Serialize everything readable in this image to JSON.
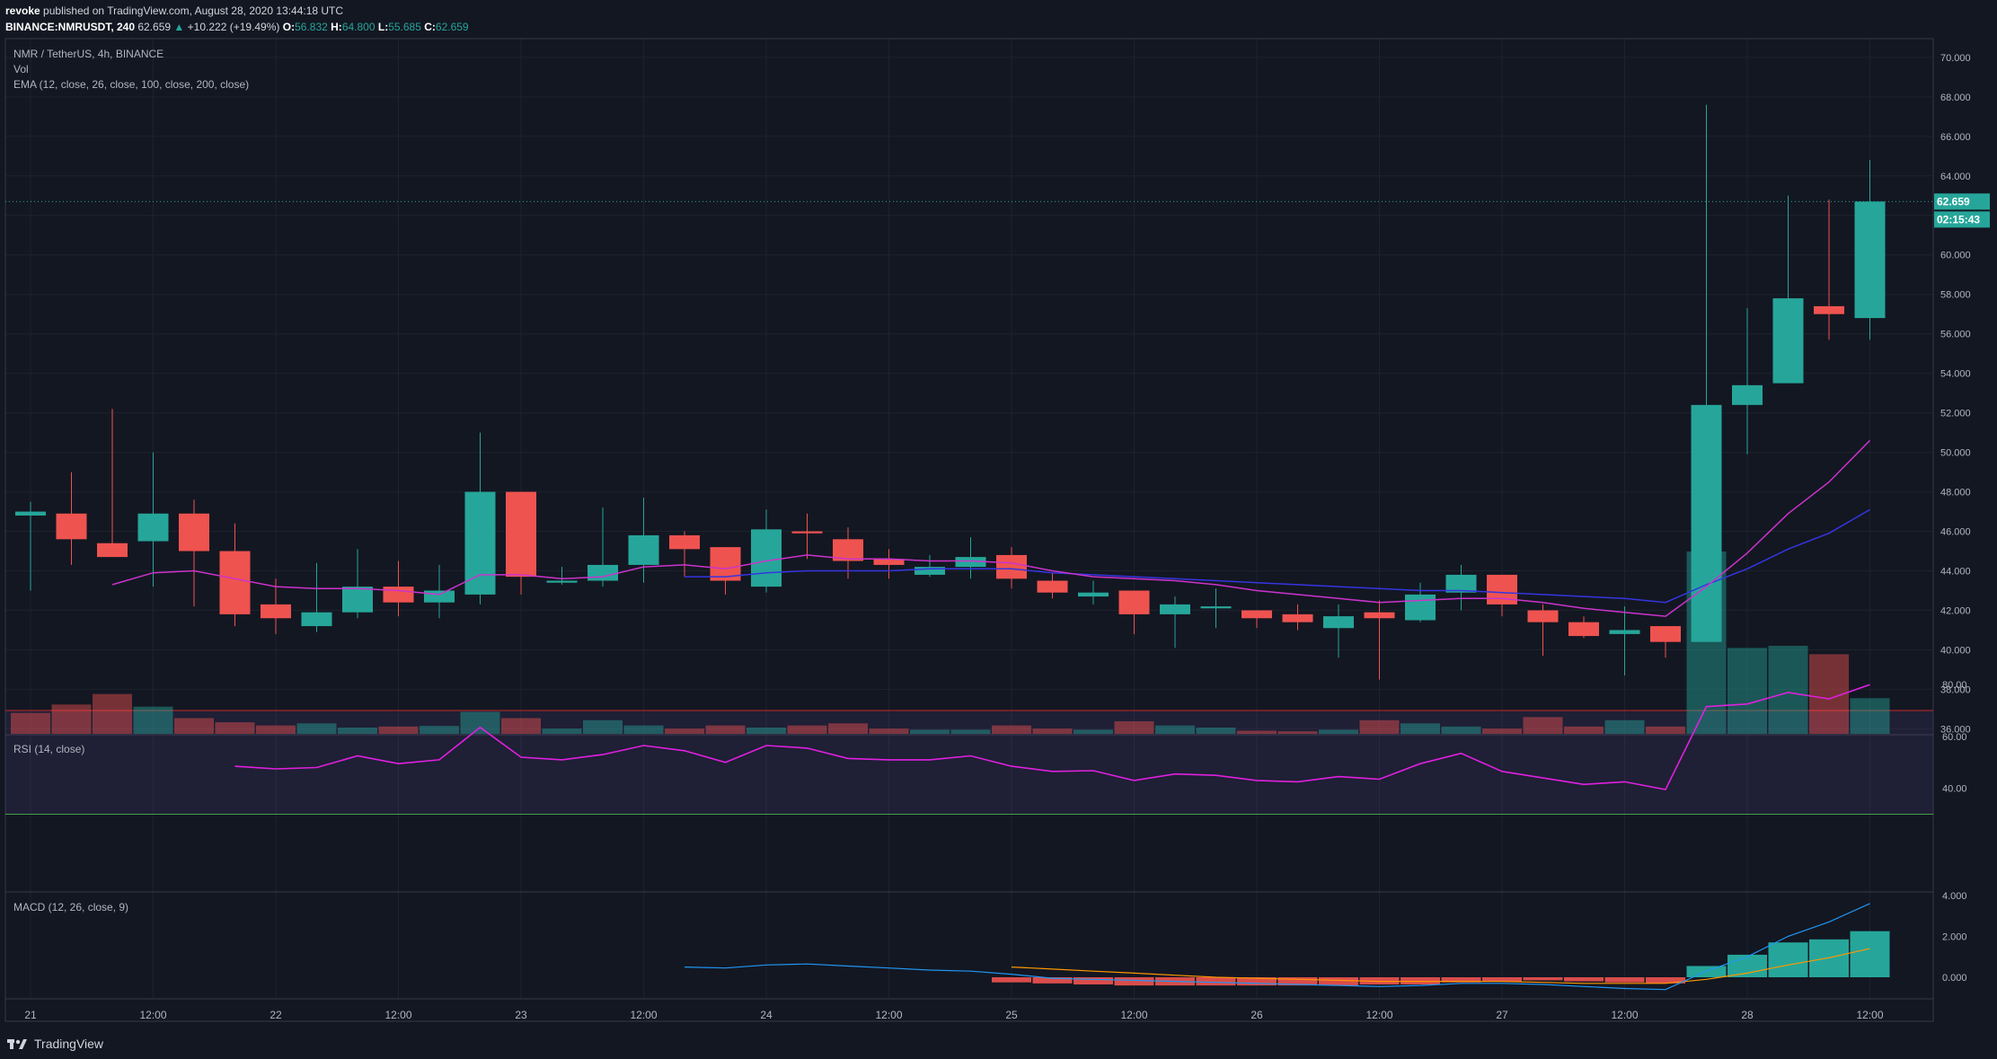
{
  "header": {
    "author": "revoke",
    "published_text": "published on TradingView.com, August 28, 2020 13:44:18 UTC",
    "symbol": "BINANCE:NMRUSDT, 240",
    "last": "62.659",
    "change_arrow": "▲",
    "change": "+10.222 (+19.49%)",
    "o_label": "O:",
    "o_val": "56.832",
    "h_label": "H:",
    "h_val": "64.800",
    "l_label": "L:",
    "l_val": "55.685",
    "c_label": "C:",
    "c_val": "62.659"
  },
  "legend": {
    "title": "NMR / TetherUS, 4h, BINANCE",
    "vol": "Vol",
    "ema": "EMA (12, close, 26, close, 100, close, 200, close)",
    "rsi": "RSI (14, close)",
    "macd": "MACD (12, 26, close, 9)"
  },
  "price_scale": [
    "70.000",
    "68.000",
    "66.000",
    "64.000",
    "62.000",
    "60.000",
    "58.000",
    "56.000",
    "54.000",
    "52.000",
    "50.000",
    "48.000",
    "46.000",
    "44.000",
    "42.000",
    "40.000",
    "38.000",
    "36.000"
  ],
  "rsi_scale": [
    "80.00",
    "60.00",
    "40.00"
  ],
  "macd_scale": [
    "4.000",
    "2.000",
    "0.000"
  ],
  "time_labels": [
    "21",
    "12:00",
    "22",
    "12:00",
    "23",
    "12:00",
    "24",
    "12:00",
    "25",
    "12:00",
    "26",
    "12:00",
    "27",
    "12:00",
    "28",
    "12:00"
  ],
  "last_price_label": "62.659",
  "countdown_label": "02:15:43",
  "footer": {
    "brand": "TradingView"
  },
  "colors": {
    "up": "#26a69a",
    "down": "#ef5350",
    "ema12": "#cc33cc",
    "ema26": "#3535e0",
    "rsi": "#e020e0",
    "macd": "#2196f3",
    "signal": "#ff9800"
  },
  "chart_data": {
    "type": "candlestick",
    "price_range": [
      36,
      70
    ],
    "candles": [
      {
        "o": 46.8,
        "h": 47.5,
        "l": 43.0,
        "c": 47.0
      },
      {
        "o": 46.9,
        "h": 49.0,
        "l": 44.3,
        "c": 45.6
      },
      {
        "o": 45.4,
        "h": 52.2,
        "l": 44.8,
        "c": 44.7
      },
      {
        "o": 45.5,
        "h": 50.0,
        "l": 43.2,
        "c": 46.9
      },
      {
        "o": 46.9,
        "h": 47.6,
        "l": 42.2,
        "c": 45.0
      },
      {
        "o": 45.0,
        "h": 46.4,
        "l": 41.2,
        "c": 41.8
      },
      {
        "o": 42.3,
        "h": 43.6,
        "l": 40.8,
        "c": 41.6
      },
      {
        "o": 41.2,
        "h": 44.4,
        "l": 40.9,
        "c": 41.9
      },
      {
        "o": 41.9,
        "h": 45.1,
        "l": 41.6,
        "c": 43.2
      },
      {
        "o": 43.2,
        "h": 44.5,
        "l": 41.7,
        "c": 42.4
      },
      {
        "o": 42.4,
        "h": 44.3,
        "l": 41.6,
        "c": 43.0
      },
      {
        "o": 42.8,
        "h": 51.0,
        "l": 42.3,
        "c": 48.0
      },
      {
        "o": 48.0,
        "h": 48.0,
        "l": 42.8,
        "c": 43.7
      },
      {
        "o": 43.4,
        "h": 44.2,
        "l": 43.3,
        "c": 43.5
      },
      {
        "o": 43.5,
        "h": 47.2,
        "l": 43.2,
        "c": 44.3
      },
      {
        "o": 44.3,
        "h": 47.7,
        "l": 43.4,
        "c": 45.8
      },
      {
        "o": 45.8,
        "h": 46.0,
        "l": 43.7,
        "c": 45.1
      },
      {
        "o": 45.2,
        "h": 45.2,
        "l": 42.8,
        "c": 43.5
      },
      {
        "o": 43.2,
        "h": 47.1,
        "l": 42.9,
        "c": 46.1
      },
      {
        "o": 46.0,
        "h": 46.9,
        "l": 44.6,
        "c": 45.9
      },
      {
        "o": 45.6,
        "h": 46.2,
        "l": 43.6,
        "c": 44.5
      },
      {
        "o": 44.6,
        "h": 45.1,
        "l": 43.6,
        "c": 44.3
      },
      {
        "o": 43.8,
        "h": 44.8,
        "l": 43.7,
        "c": 44.2
      },
      {
        "o": 44.2,
        "h": 45.7,
        "l": 43.6,
        "c": 44.7
      },
      {
        "o": 44.8,
        "h": 45.2,
        "l": 43.1,
        "c": 43.6
      },
      {
        "o": 43.5,
        "h": 43.9,
        "l": 42.6,
        "c": 42.9
      },
      {
        "o": 42.7,
        "h": 43.5,
        "l": 42.3,
        "c": 42.9
      },
      {
        "o": 43.0,
        "h": 43.0,
        "l": 40.8,
        "c": 41.8
      },
      {
        "o": 41.8,
        "h": 42.7,
        "l": 40.1,
        "c": 42.3
      },
      {
        "o": 42.1,
        "h": 43.1,
        "l": 41.1,
        "c": 42.2
      },
      {
        "o": 42.0,
        "h": 42.0,
        "l": 41.1,
        "c": 41.6
      },
      {
        "o": 41.8,
        "h": 42.3,
        "l": 41.0,
        "c": 41.4
      },
      {
        "o": 41.1,
        "h": 42.3,
        "l": 39.6,
        "c": 41.7
      },
      {
        "o": 41.9,
        "h": 42.5,
        "l": 38.5,
        "c": 41.6
      },
      {
        "o": 41.5,
        "h": 43.4,
        "l": 41.4,
        "c": 42.8
      },
      {
        "o": 42.9,
        "h": 44.3,
        "l": 42.0,
        "c": 43.8
      },
      {
        "o": 43.8,
        "h": 43.8,
        "l": 41.7,
        "c": 42.3
      },
      {
        "o": 42.0,
        "h": 42.3,
        "l": 39.7,
        "c": 41.4
      },
      {
        "o": 41.4,
        "h": 41.7,
        "l": 40.6,
        "c": 40.7
      },
      {
        "o": 40.8,
        "h": 42.2,
        "l": 38.7,
        "c": 41.0
      },
      {
        "o": 41.2,
        "h": 41.2,
        "l": 39.6,
        "c": 40.4
      },
      {
        "o": 40.4,
        "h": 67.6,
        "l": 40.4,
        "c": 52.4
      },
      {
        "o": 52.4,
        "h": 57.3,
        "l": 49.9,
        "c": 53.4
      },
      {
        "o": 53.5,
        "h": 63.0,
        "l": 53.5,
        "c": 57.8
      },
      {
        "o": 57.4,
        "h": 62.8,
        "l": 55.7,
        "c": 57.0
      },
      {
        "o": 56.8,
        "h": 64.8,
        "l": 55.7,
        "c": 62.7
      }
    ],
    "volume": [
      {
        "v": 1.0,
        "up": false
      },
      {
        "v": 1.4,
        "up": false
      },
      {
        "v": 1.9,
        "up": false
      },
      {
        "v": 1.3,
        "up": true
      },
      {
        "v": 0.75,
        "up": false
      },
      {
        "v": 0.55,
        "up": false
      },
      {
        "v": 0.4,
        "up": false
      },
      {
        "v": 0.5,
        "up": true
      },
      {
        "v": 0.3,
        "up": true
      },
      {
        "v": 0.35,
        "up": false
      },
      {
        "v": 0.38,
        "up": true
      },
      {
        "v": 1.05,
        "up": true
      },
      {
        "v": 0.75,
        "up": false
      },
      {
        "v": 0.25,
        "up": true
      },
      {
        "v": 0.65,
        "up": true
      },
      {
        "v": 0.4,
        "up": true
      },
      {
        "v": 0.25,
        "up": false
      },
      {
        "v": 0.4,
        "up": false
      },
      {
        "v": 0.3,
        "up": true
      },
      {
        "v": 0.4,
        "up": false
      },
      {
        "v": 0.5,
        "up": false
      },
      {
        "v": 0.25,
        "up": false
      },
      {
        "v": 0.2,
        "up": true
      },
      {
        "v": 0.2,
        "up": true
      },
      {
        "v": 0.4,
        "up": false
      },
      {
        "v": 0.25,
        "up": false
      },
      {
        "v": 0.2,
        "up": true
      },
      {
        "v": 0.6,
        "up": false
      },
      {
        "v": 0.4,
        "up": true
      },
      {
        "v": 0.3,
        "up": true
      },
      {
        "v": 0.15,
        "up": false
      },
      {
        "v": 0.12,
        "up": false
      },
      {
        "v": 0.2,
        "up": true
      },
      {
        "v": 0.65,
        "up": false
      },
      {
        "v": 0.5,
        "up": true
      },
      {
        "v": 0.35,
        "up": true
      },
      {
        "v": 0.25,
        "up": false
      },
      {
        "v": 0.8,
        "up": false
      },
      {
        "v": 0.35,
        "up": false
      },
      {
        "v": 0.65,
        "up": true
      },
      {
        "v": 0.35,
        "up": false
      },
      {
        "v": 8.7,
        "up": true
      },
      {
        "v": 4.1,
        "up": true
      },
      {
        "v": 4.2,
        "up": true
      },
      {
        "v": 3.8,
        "up": false
      },
      {
        "v": 1.7,
        "up": true
      }
    ],
    "volume_max": 9.0,
    "ema12": [
      [
        2,
        43.3
      ],
      [
        3,
        43.9
      ],
      [
        4,
        44.0
      ],
      [
        5,
        43.6
      ],
      [
        6,
        43.2
      ],
      [
        7,
        43.1
      ],
      [
        8,
        43.1
      ],
      [
        9,
        43.0
      ],
      [
        10,
        42.8
      ],
      [
        11,
        43.8
      ],
      [
        12,
        43.8
      ],
      [
        13,
        43.6
      ],
      [
        14,
        43.7
      ],
      [
        15,
        44.2
      ],
      [
        16,
        44.3
      ],
      [
        17,
        44.1
      ],
      [
        18,
        44.5
      ],
      [
        19,
        44.8
      ],
      [
        20,
        44.6
      ],
      [
        21,
        44.6
      ],
      [
        22,
        44.5
      ],
      [
        23,
        44.5
      ],
      [
        24,
        44.4
      ],
      [
        25,
        44.0
      ],
      [
        26,
        43.7
      ],
      [
        27,
        43.6
      ],
      [
        28,
        43.5
      ],
      [
        29,
        43.3
      ],
      [
        30,
        43.0
      ],
      [
        31,
        42.8
      ],
      [
        32,
        42.6
      ],
      [
        33,
        42.4
      ],
      [
        34,
        42.5
      ],
      [
        35,
        42.6
      ],
      [
        36,
        42.6
      ],
      [
        37,
        42.4
      ],
      [
        38,
        42.1
      ],
      [
        39,
        41.9
      ],
      [
        40,
        41.7
      ],
      [
        41,
        43.2
      ],
      [
        42,
        44.9
      ],
      [
        43,
        46.9
      ],
      [
        44,
        48.5
      ],
      [
        45,
        50.6
      ]
    ],
    "ema26": [
      [
        16,
        43.7
      ],
      [
        17,
        43.7
      ],
      [
        18,
        43.9
      ],
      [
        19,
        44.0
      ],
      [
        20,
        44.0
      ],
      [
        21,
        44.0
      ],
      [
        22,
        44.1
      ],
      [
        23,
        44.1
      ],
      [
        24,
        44.1
      ],
      [
        25,
        43.9
      ],
      [
        26,
        43.8
      ],
      [
        27,
        43.7
      ],
      [
        28,
        43.6
      ],
      [
        29,
        43.5
      ],
      [
        30,
        43.4
      ],
      [
        31,
        43.3
      ],
      [
        32,
        43.2
      ],
      [
        33,
        43.1
      ],
      [
        34,
        43.0
      ],
      [
        35,
        43.0
      ],
      [
        36,
        42.9
      ],
      [
        37,
        42.8
      ],
      [
        38,
        42.7
      ],
      [
        39,
        42.6
      ],
      [
        40,
        42.4
      ],
      [
        41,
        43.3
      ],
      [
        42,
        44.1
      ],
      [
        43,
        45.1
      ],
      [
        44,
        45.9
      ],
      [
        45,
        47.1
      ]
    ],
    "rsi": [
      [
        5,
        48.5
      ],
      [
        6,
        47.5
      ],
      [
        7,
        48.0
      ],
      [
        8,
        52.5
      ],
      [
        9,
        49.5
      ],
      [
        10,
        51.0
      ],
      [
        11,
        63.5
      ],
      [
        12,
        52.0
      ],
      [
        13,
        51.0
      ],
      [
        14,
        53.0
      ],
      [
        15,
        56.5
      ],
      [
        16,
        54.5
      ],
      [
        17,
        50.0
      ],
      [
        18,
        56.5
      ],
      [
        19,
        55.5
      ],
      [
        20,
        51.5
      ],
      [
        21,
        51.0
      ],
      [
        22,
        51.0
      ],
      [
        23,
        52.5
      ],
      [
        24,
        48.5
      ],
      [
        25,
        46.5
      ],
      [
        26,
        46.8
      ],
      [
        27,
        43.0
      ],
      [
        28,
        45.5
      ],
      [
        29,
        45.0
      ],
      [
        30,
        43.0
      ],
      [
        31,
        42.5
      ],
      [
        32,
        44.5
      ],
      [
        33,
        43.5
      ],
      [
        34,
        49.5
      ],
      [
        35,
        53.5
      ],
      [
        36,
        46.5
      ],
      [
        37,
        44.0
      ],
      [
        38,
        41.5
      ],
      [
        39,
        42.5
      ],
      [
        40,
        39.5
      ],
      [
        41,
        71.5
      ],
      [
        42,
        72.5
      ],
      [
        43,
        77.0
      ],
      [
        44,
        74.5
      ],
      [
        45,
        80.0
      ]
    ],
    "rsi_levels": [
      70,
      30
    ],
    "macd": [
      [
        16,
        0.5
      ],
      [
        17,
        0.45
      ],
      [
        18,
        0.6
      ],
      [
        19,
        0.65
      ],
      [
        20,
        0.55
      ],
      [
        21,
        0.45
      ],
      [
        22,
        0.35
      ],
      [
        23,
        0.3
      ],
      [
        24,
        0.15
      ],
      [
        25,
        -0.05
      ],
      [
        26,
        -0.1
      ],
      [
        27,
        -0.15
      ],
      [
        28,
        -0.2
      ],
      [
        29,
        -0.25
      ],
      [
        30,
        -0.3
      ],
      [
        31,
        -0.35
      ],
      [
        32,
        -0.4
      ],
      [
        33,
        -0.45
      ],
      [
        34,
        -0.4
      ],
      [
        35,
        -0.3
      ],
      [
        36,
        -0.3
      ],
      [
        37,
        -0.35
      ],
      [
        38,
        -0.45
      ],
      [
        39,
        -0.55
      ],
      [
        40,
        -0.6
      ],
      [
        41,
        0.3
      ],
      [
        42,
        1.0
      ],
      [
        43,
        2.0
      ],
      [
        44,
        2.7
      ],
      [
        45,
        3.6
      ]
    ],
    "signal": [
      [
        24,
        0.5
      ],
      [
        25,
        0.4
      ],
      [
        26,
        0.3
      ],
      [
        27,
        0.2
      ],
      [
        28,
        0.1
      ],
      [
        29,
        0.0
      ],
      [
        30,
        -0.05
      ],
      [
        31,
        -0.1
      ],
      [
        32,
        -0.15
      ],
      [
        33,
        -0.2
      ],
      [
        34,
        -0.2
      ],
      [
        35,
        -0.2
      ],
      [
        36,
        -0.2
      ],
      [
        37,
        -0.25
      ],
      [
        38,
        -0.3
      ],
      [
        39,
        -0.3
      ],
      [
        40,
        -0.3
      ],
      [
        41,
        -0.1
      ],
      [
        42,
        0.2
      ],
      [
        43,
        0.6
      ],
      [
        44,
        0.95
      ],
      [
        45,
        1.4
      ]
    ],
    "histogram": [
      [
        24,
        -0.25
      ],
      [
        25,
        -0.3
      ],
      [
        26,
        -0.35
      ],
      [
        27,
        -0.4
      ],
      [
        28,
        -0.4
      ],
      [
        29,
        -0.4
      ],
      [
        30,
        -0.4
      ],
      [
        31,
        -0.4
      ],
      [
        32,
        -0.4
      ],
      [
        33,
        -0.35
      ],
      [
        34,
        -0.35
      ],
      [
        35,
        -0.25
      ],
      [
        36,
        -0.2
      ],
      [
        37,
        -0.15
      ],
      [
        38,
        -0.2
      ],
      [
        39,
        -0.25
      ],
      [
        40,
        -0.3
      ],
      [
        41,
        0.55
      ],
      [
        42,
        1.1
      ],
      [
        43,
        1.7
      ],
      [
        44,
        1.85
      ],
      [
        45,
        2.25
      ]
    ],
    "macd_range": [
      -1.0,
      4.0
    ],
    "rsi_range": [
      25,
      85
    ]
  }
}
